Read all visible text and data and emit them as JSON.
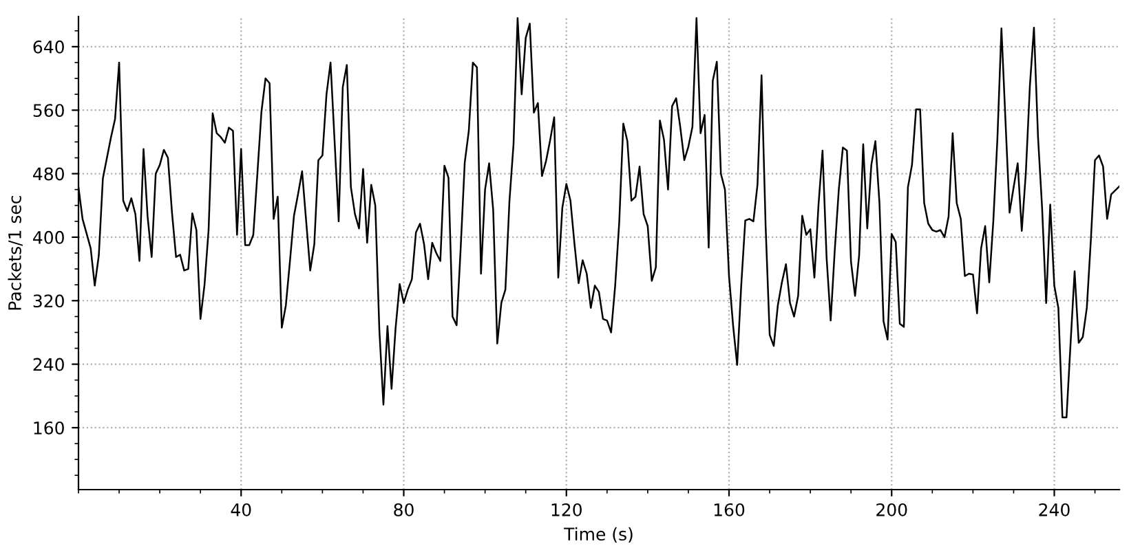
{
  "chart_data": {
    "type": "line",
    "xlabel": "Time (s)",
    "ylabel": "Packets/1 sec",
    "xlim": [
      0,
      256
    ],
    "ylim": [
      82,
      678
    ],
    "xticks": [
      40,
      80,
      120,
      160,
      200,
      240
    ],
    "yticks": [
      160,
      240,
      320,
      400,
      480,
      560,
      640
    ],
    "grid": true,
    "line_style": "solid",
    "series": [
      {
        "color": "#000000",
        "x": [
          0,
          1,
          3,
          4,
          5,
          6,
          8,
          9,
          10,
          11,
          12,
          13,
          14,
          15,
          16,
          17,
          18,
          19,
          20,
          21,
          22,
          23,
          24,
          25,
          26,
          27,
          28,
          29,
          30,
          31,
          32,
          33,
          34,
          35,
          36,
          37,
          38,
          39,
          40,
          41,
          42,
          43,
          44,
          45,
          46,
          47,
          48,
          49,
          50,
          51,
          52,
          53,
          54,
          55,
          56,
          57,
          58,
          59,
          60,
          61,
          62,
          64,
          65,
          66,
          67,
          68,
          69,
          70,
          71,
          72,
          73,
          74,
          75,
          76,
          77,
          78,
          79,
          80,
          81,
          82,
          83,
          84,
          85,
          86,
          87,
          88,
          89,
          90,
          91,
          92,
          93,
          94,
          95,
          96,
          97,
          98,
          99,
          100,
          101,
          102,
          103,
          104,
          105,
          106,
          107,
          108,
          109,
          110,
          111,
          112,
          113,
          114,
          115,
          116,
          117,
          118,
          119,
          120,
          121,
          122,
          123,
          124,
          125,
          126,
          127,
          128,
          129,
          130,
          131,
          132,
          133,
          134,
          135,
          136,
          137,
          138,
          139,
          140,
          141,
          142,
          143,
          144,
          145,
          146,
          147,
          148,
          149,
          150,
          151,
          152,
          153,
          154,
          155,
          156,
          157,
          158,
          159,
          160,
          161,
          162,
          163,
          164,
          165,
          166,
          167,
          168,
          169,
          170,
          171,
          172,
          173,
          174,
          175,
          176,
          177,
          178,
          179,
          180,
          181,
          182,
          183,
          184,
          185,
          186,
          187,
          188,
          189,
          190,
          191,
          192,
          193,
          194,
          195,
          196,
          197,
          198,
          199,
          200,
          201,
          202,
          203,
          204,
          205,
          206,
          207,
          208,
          209,
          210,
          211,
          212,
          213,
          214,
          215,
          216,
          217,
          218,
          219,
          220,
          221,
          222,
          223,
          224,
          225,
          226,
          227,
          228,
          229,
          230,
          231,
          232,
          233,
          234,
          235,
          236,
          237,
          238,
          239,
          240,
          241,
          242,
          243,
          244,
          245,
          246,
          247,
          248,
          249,
          250,
          251,
          252,
          253,
          254,
          256
        ],
        "values": [
          463,
          423,
          386,
          339,
          377,
          474,
          526,
          549,
          620,
          446,
          433,
          449,
          429,
          370,
          511,
          426,
          375,
          480,
          491,
          510,
          500,
          431,
          375,
          378,
          358,
          360,
          430,
          409,
          297,
          340,
          409,
          556,
          531,
          526,
          519,
          538,
          534,
          403,
          511,
          390,
          390,
          403,
          480,
          558,
          600,
          594,
          423,
          451,
          286,
          314,
          369,
          427,
          454,
          483,
          420,
          358,
          391,
          497,
          503,
          580,
          620,
          420,
          589,
          617,
          463,
          429,
          411,
          486,
          393,
          466,
          440,
          283,
          189,
          288,
          209,
          286,
          341,
          317,
          334,
          347,
          406,
          417,
          391,
          347,
          393,
          380,
          370,
          490,
          475,
          300,
          289,
          386,
          494,
          534,
          620,
          614,
          354,
          460,
          493,
          434,
          266,
          317,
          334,
          446,
          517,
          676,
          580,
          651,
          669,
          557,
          569,
          477,
          496,
          522,
          551,
          349,
          437,
          467,
          446,
          391,
          342,
          371,
          354,
          311,
          339,
          331,
          297,
          295,
          280,
          339,
          419,
          543,
          521,
          446,
          451,
          489,
          429,
          414,
          345,
          362,
          547,
          523,
          460,
          565,
          575,
          539,
          497,
          514,
          539,
          676,
          531,
          554,
          387,
          597,
          621,
          480,
          460,
          351,
          289,
          239,
          339,
          421,
          423,
          420,
          466,
          604,
          414,
          277,
          263,
          314,
          343,
          366,
          317,
          300,
          326,
          427,
          403,
          410,
          349,
          440,
          509,
          374,
          295,
          383,
          460,
          513,
          509,
          369,
          326,
          377,
          517,
          411,
          491,
          521,
          443,
          294,
          271,
          404,
          394,
          291,
          287,
          463,
          491,
          561,
          561,
          443,
          417,
          409,
          407,
          409,
          400,
          426,
          531,
          443,
          423,
          351,
          354,
          353,
          304,
          386,
          414,
          343,
          420,
          523,
          663,
          546,
          431,
          463,
          493,
          408,
          481,
          591,
          664,
          526,
          437,
          317,
          441,
          339,
          311,
          173,
          173,
          266,
          357,
          267,
          274,
          311,
          397,
          497,
          503,
          489,
          423,
          454,
          464
        ]
      }
    ]
  }
}
